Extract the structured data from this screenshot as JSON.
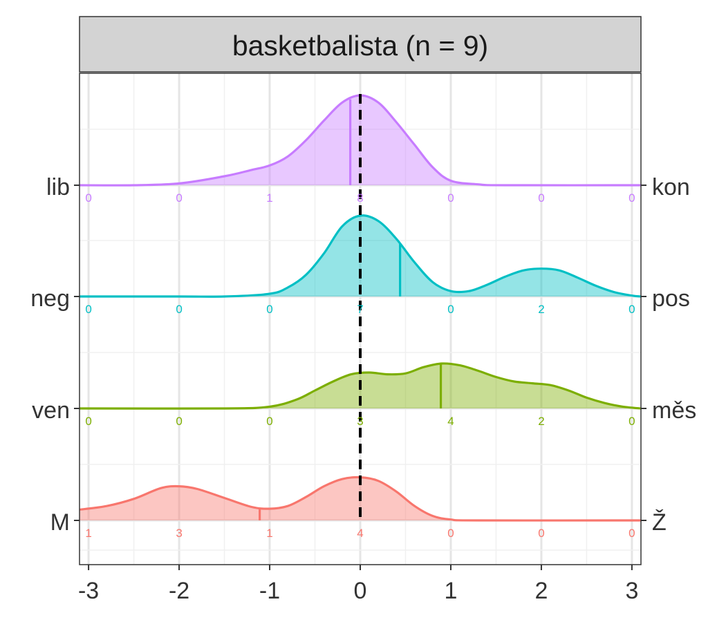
{
  "chart_data": {
    "type": "ridgeline",
    "title": "basketbalista (n = 9)",
    "xlim": [
      -3.1,
      3.1
    ],
    "x_ticks": [
      -3,
      -2,
      -1,
      0,
      1,
      2,
      3
    ],
    "x_tick_labels": [
      "-3",
      "-2",
      "-1",
      "0",
      "1",
      "2",
      "3"
    ],
    "reference_line_x": 0,
    "grid": true,
    "count_positions": [
      -3,
      -2,
      -1,
      0,
      1,
      2,
      3
    ],
    "series": [
      {
        "left_label": "lib",
        "right_label": "kon",
        "color": "#C77CFF",
        "mean": -0.11,
        "counts": [
          "0",
          "0",
          "1",
          "8",
          "0",
          "0",
          "0"
        ],
        "density": [
          [
            -3.1,
            0
          ],
          [
            -2.5,
            0.0
          ],
          [
            -2.0,
            0.02
          ],
          [
            -1.5,
            0.1
          ],
          [
            -1.2,
            0.17
          ],
          [
            -1.0,
            0.22
          ],
          [
            -0.8,
            0.32
          ],
          [
            -0.6,
            0.5
          ],
          [
            -0.4,
            0.72
          ],
          [
            -0.2,
            0.92
          ],
          [
            0.0,
            1.0
          ],
          [
            0.2,
            0.92
          ],
          [
            0.4,
            0.7
          ],
          [
            0.6,
            0.45
          ],
          [
            0.8,
            0.2
          ],
          [
            1.0,
            0.05
          ],
          [
            1.3,
            0.01
          ],
          [
            1.6,
            0.0
          ],
          [
            3.1,
            0
          ]
        ]
      },
      {
        "left_label": "neg",
        "right_label": "pos",
        "color": "#00BFC4",
        "mean": 0.44,
        "counts": [
          "0",
          "0",
          "0",
          "7",
          "0",
          "2",
          "0"
        ],
        "density": [
          [
            -3.1,
            0
          ],
          [
            -2.0,
            0.0
          ],
          [
            -1.5,
            0.0
          ],
          [
            -1.0,
            0.03
          ],
          [
            -0.8,
            0.1
          ],
          [
            -0.6,
            0.24
          ],
          [
            -0.4,
            0.48
          ],
          [
            -0.2,
            0.78
          ],
          [
            0.0,
            0.9
          ],
          [
            0.2,
            0.84
          ],
          [
            0.4,
            0.64
          ],
          [
            0.6,
            0.38
          ],
          [
            0.8,
            0.16
          ],
          [
            1.0,
            0.06
          ],
          [
            1.2,
            0.06
          ],
          [
            1.4,
            0.13
          ],
          [
            1.6,
            0.22
          ],
          [
            1.8,
            0.29
          ],
          [
            2.0,
            0.31
          ],
          [
            2.2,
            0.29
          ],
          [
            2.4,
            0.21
          ],
          [
            2.6,
            0.12
          ],
          [
            2.8,
            0.05
          ],
          [
            3.0,
            0.01
          ],
          [
            3.1,
            0
          ]
        ]
      },
      {
        "left_label": "ven",
        "right_label": "měs",
        "color": "#7CAE00",
        "mean": 0.89,
        "counts": [
          "0",
          "0",
          "0",
          "3",
          "4",
          "2",
          "0"
        ],
        "density": [
          [
            -3.1,
            0
          ],
          [
            -1.5,
            0.0
          ],
          [
            -1.0,
            0.02
          ],
          [
            -0.7,
            0.1
          ],
          [
            -0.5,
            0.2
          ],
          [
            -0.3,
            0.3
          ],
          [
            -0.1,
            0.38
          ],
          [
            0.1,
            0.4
          ],
          [
            0.3,
            0.38
          ],
          [
            0.5,
            0.39
          ],
          [
            0.7,
            0.46
          ],
          [
            0.9,
            0.5
          ],
          [
            1.1,
            0.48
          ],
          [
            1.3,
            0.42
          ],
          [
            1.5,
            0.35
          ],
          [
            1.7,
            0.3
          ],
          [
            1.9,
            0.28
          ],
          [
            2.1,
            0.26
          ],
          [
            2.3,
            0.2
          ],
          [
            2.5,
            0.12
          ],
          [
            2.7,
            0.06
          ],
          [
            2.9,
            0.02
          ],
          [
            3.1,
            0
          ]
        ]
      },
      {
        "left_label": "M",
        "right_label": "Ž",
        "color": "#F8766D",
        "mean": -1.11,
        "counts": [
          "1",
          "3",
          "1",
          "4",
          "0",
          "0",
          "0"
        ],
        "density": [
          [
            -3.1,
            0.12
          ],
          [
            -2.8,
            0.16
          ],
          [
            -2.5,
            0.24
          ],
          [
            -2.2,
            0.36
          ],
          [
            -2.0,
            0.38
          ],
          [
            -1.8,
            0.35
          ],
          [
            -1.5,
            0.25
          ],
          [
            -1.2,
            0.15
          ],
          [
            -1.0,
            0.13
          ],
          [
            -0.8,
            0.16
          ],
          [
            -0.6,
            0.26
          ],
          [
            -0.4,
            0.38
          ],
          [
            -0.2,
            0.46
          ],
          [
            0.0,
            0.48
          ],
          [
            0.2,
            0.44
          ],
          [
            0.4,
            0.32
          ],
          [
            0.6,
            0.16
          ],
          [
            0.8,
            0.05
          ],
          [
            1.0,
            0.01
          ],
          [
            1.3,
            0.0
          ],
          [
            3.1,
            0
          ]
        ]
      }
    ]
  }
}
